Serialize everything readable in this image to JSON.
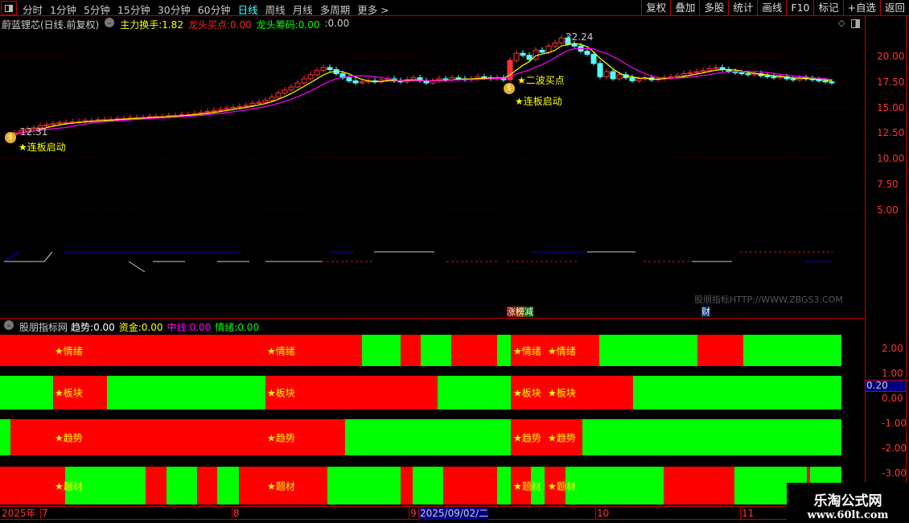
{
  "toolbar": {
    "periods": [
      "分时",
      "1分钟",
      "5分钟",
      "15分钟",
      "30分钟",
      "60分钟",
      "日线",
      "周线",
      "月线",
      "多周期",
      "更多 >"
    ],
    "active_period": "日线",
    "buttons": [
      "复权",
      "叠加",
      "多股",
      "统计",
      "画线",
      "F10",
      "标记",
      "+自选",
      "返回"
    ]
  },
  "info": {
    "title": "蔚蓝锂芯(日线.前复权)",
    "items": [
      {
        "label": "主力换手:",
        "value": "1.82",
        "color": "#ffff00"
      },
      {
        "label": "龙头买点:",
        "value": "0.00",
        "color": "#ff2020"
      },
      {
        "label": "龙头筹码:",
        "value": "0.00",
        "color": "#00ff00"
      },
      {
        "label": ":",
        "value": "0.00",
        "color": "#cccccc"
      }
    ]
  },
  "price_axis": [
    "20.00",
    "17.50",
    "15.00",
    "12.50",
    "10.00",
    "7.50",
    "5.00"
  ],
  "kline": {
    "closes": [
      12.3,
      12.5,
      12.7,
      12.9,
      13.0,
      13.2,
      13.3,
      13.4,
      13.5,
      13.5,
      13.6,
      13.6,
      13.7,
      13.7,
      13.8,
      13.8,
      13.8,
      13.9,
      13.9,
      14.0,
      14.0,
      14.0,
      14.1,
      14.1,
      14.1,
      14.2,
      14.2,
      14.3,
      14.3,
      14.4,
      14.5,
      14.6,
      14.7,
      14.8,
      14.9,
      15.0,
      15.1,
      15.2,
      15.4,
      15.5,
      15.7,
      16.0,
      16.4,
      16.7,
      17.0,
      17.4,
      17.8,
      18.2,
      18.6,
      18.9,
      18.7,
      18.3,
      17.9,
      17.6,
      17.4,
      17.5,
      17.6,
      17.5,
      17.7,
      17.8,
      17.6,
      17.5,
      17.7,
      17.9,
      17.6,
      17.4,
      17.6,
      17.8,
      17.7,
      17.9,
      17.8,
      17.7,
      17.8,
      18.0,
      17.9,
      17.8,
      17.9,
      17.7,
      19.6,
      20.3,
      20.1,
      19.7,
      20.6,
      20.4,
      21.0,
      21.3,
      21.8,
      21.2,
      21.0,
      20.5,
      20.2,
      19.3,
      18.0,
      18.5,
      17.8,
      18.2,
      17.9,
      17.6,
      17.8,
      17.9,
      17.7,
      17.8,
      17.9,
      18.0,
      18.1,
      18.3,
      18.4,
      18.5,
      18.6,
      18.8,
      18.9,
      18.7,
      18.5,
      18.4,
      18.3,
      18.2,
      18.3,
      18.1,
      18.0,
      17.9,
      18.0,
      17.8,
      17.7,
      17.9,
      17.8,
      17.7,
      17.6,
      17.5,
      17.4
    ],
    "high_label": "22.24",
    "low_label": "12.31",
    "up_color": "#ff3232",
    "down_color": "#54ffff",
    "ma_colors": [
      "#ffff00",
      "#ff00ff"
    ]
  },
  "annotations": {
    "start1": "★连板启动",
    "buy2": "★二波买点",
    "start2": "★连板启动",
    "tag_zt": "涨",
    "tag_bang": "榜",
    "tag_jian": "减",
    "tag_cai": "财",
    "site": "股朋指标HTTP://WWW.ZBGS3.COM"
  },
  "indicator": {
    "name": "股朋指标网",
    "items": [
      {
        "label": "趋势:",
        "value": "0.00",
        "color": "#ffffff"
      },
      {
        "label": "资金:",
        "value": "0.00",
        "color": "#ffff00"
      },
      {
        "label": "中线:",
        "value": "0.00",
        "color": "#ff00ff"
      },
      {
        "label": "情绪:",
        "value": "0.00",
        "color": "#00ff00"
      }
    ],
    "axis": [
      "2.00",
      "1.00",
      "0.00",
      "-1.00",
      "-2.00",
      "-3.00"
    ],
    "cursor_value": "0.20",
    "rows": [
      {
        "label": "★情绪",
        "segments": [
          [
            "r",
            0,
            450
          ],
          [
            "g",
            450,
            498
          ],
          [
            "r",
            498,
            523
          ],
          [
            "g",
            523,
            561
          ],
          [
            "r",
            561,
            618
          ],
          [
            "g",
            618,
            635
          ],
          [
            "r",
            635,
            745
          ],
          [
            "g",
            745,
            867
          ],
          [
            "r",
            867,
            924
          ],
          [
            "g",
            924,
            1046
          ]
        ]
      },
      {
        "label": "★板块",
        "segments": [
          [
            "g",
            0,
            66
          ],
          [
            "r",
            66,
            133
          ],
          [
            "g",
            133,
            330
          ],
          [
            "r",
            330,
            544
          ],
          [
            "g",
            544,
            635
          ],
          [
            "r",
            635,
            787
          ],
          [
            "g",
            787,
            1046
          ]
        ]
      },
      {
        "label": "★趋势",
        "segments": [
          [
            "g",
            0,
            13
          ],
          [
            "r",
            13,
            429
          ],
          [
            "g",
            429,
            635
          ],
          [
            "r",
            635,
            724
          ],
          [
            "g",
            724,
            1046
          ]
        ]
      },
      {
        "label": "★题材",
        "segments": [
          [
            "r",
            0,
            81
          ],
          [
            "g",
            81,
            181
          ],
          [
            "r",
            181,
            207
          ],
          [
            "g",
            207,
            245
          ],
          [
            "r",
            245,
            270
          ],
          [
            "g",
            270,
            297
          ],
          [
            "r",
            297,
            407
          ],
          [
            "g",
            407,
            498
          ],
          [
            "r",
            498,
            513
          ],
          [
            "g",
            513,
            551
          ],
          [
            "r",
            551,
            618
          ],
          [
            "g",
            618,
            635
          ],
          [
            "r",
            635,
            660
          ],
          [
            "g",
            660,
            677
          ],
          [
            "r",
            677,
            703
          ],
          [
            "g",
            703,
            825
          ],
          [
            "r",
            825,
            913
          ],
          [
            "g",
            913,
            1003
          ],
          [
            "r",
            1003,
            1007
          ],
          [
            "g",
            1007,
            1046
          ]
        ]
      }
    ],
    "colors": {
      "r": "#ff0000",
      "g": "#00ff00"
    }
  },
  "dates": {
    "year": "2025年",
    "m7": "7",
    "m8": "8",
    "m9": "9",
    "cursor": "2025/09/02/二",
    "m10": "10",
    "m11": "11"
  },
  "watermark": {
    "line1": "乐淘公式网",
    "line2": "www.60lt.com"
  }
}
